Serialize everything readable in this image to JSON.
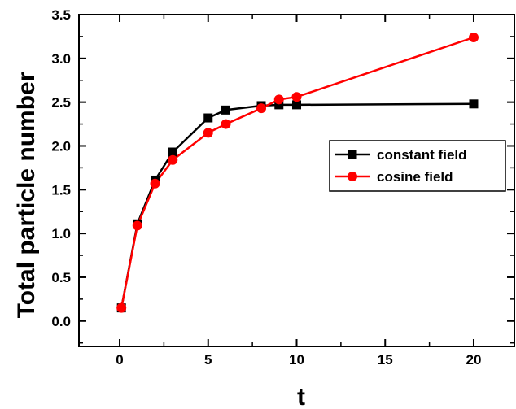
{
  "chart_data": {
    "type": "line",
    "title": "",
    "xlabel": "t",
    "ylabel": "Total particle number",
    "xlim": [
      -2.3,
      22.3
    ],
    "ylim": [
      -0.29,
      3.5
    ],
    "xticks": [
      0,
      5,
      10,
      15,
      20
    ],
    "xtick_labels": [
      "0",
      "5",
      "10",
      "15",
      "20"
    ],
    "yticks": [
      0.0,
      0.5,
      1.0,
      1.5,
      2.0,
      2.5,
      3.0,
      3.5
    ],
    "ytick_labels": [
      "0.0",
      "0.5",
      "1.0",
      "1.5",
      "2.0",
      "2.5",
      "3.0",
      "3.5"
    ],
    "grid": false,
    "legend_position": "right",
    "series": [
      {
        "name": "constant field",
        "color": "#000000",
        "marker": "square",
        "x": [
          0.1,
          1,
          2,
          3,
          5,
          6,
          8,
          9,
          10,
          20
        ],
        "y": [
          0.15,
          1.11,
          1.61,
          1.93,
          2.32,
          2.41,
          2.46,
          2.47,
          2.47,
          2.48
        ]
      },
      {
        "name": "cosine field",
        "color": "#ff0000",
        "marker": "circle",
        "x": [
          0.1,
          1,
          2,
          3,
          5,
          6,
          8,
          9,
          10,
          20
        ],
        "y": [
          0.15,
          1.09,
          1.57,
          1.84,
          2.15,
          2.25,
          2.43,
          2.53,
          2.56,
          3.24
        ]
      }
    ]
  }
}
